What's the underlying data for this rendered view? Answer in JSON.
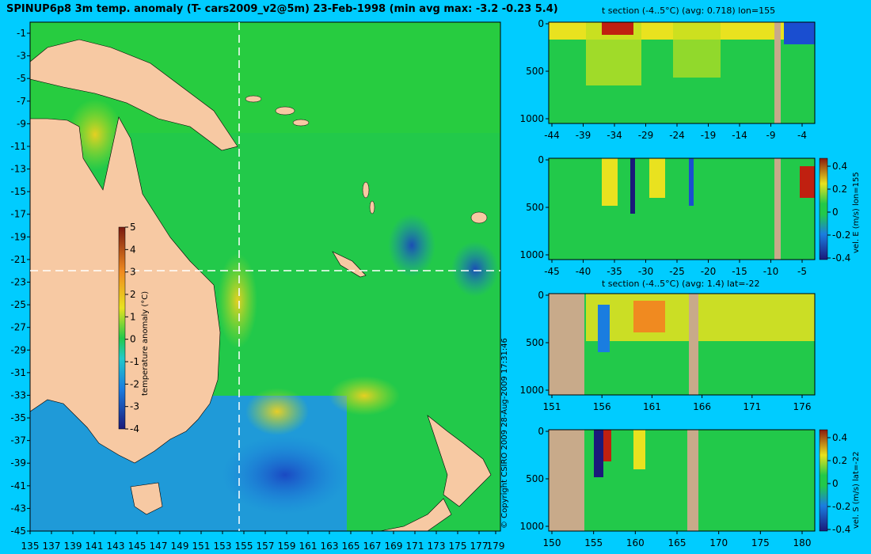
{
  "title": "SPINUP6p8 3m temp. anomaly (T- cars2009_v2@5m) 23-Feb-1998 (min avg max: -3.2 -0.23 5.4)",
  "copyright": "© Copyright CSIRO 2009   28-Aug-2009 17:31:46",
  "colors": {
    "background": "#00ccff",
    "land": "#f7c9a3",
    "section_land": "#c8aa8a",
    "ocean_mid": "#22c94a",
    "ocean_warm": "#e9e21f",
    "ocean_cold": "#1a7de0",
    "guide_line": "#ffffff"
  },
  "map": {
    "x_ticks": [
      "135",
      "137",
      "139",
      "141",
      "143",
      "145",
      "147",
      "149",
      "151",
      "153",
      "155",
      "157",
      "159",
      "161",
      "163",
      "165",
      "167",
      "169",
      "171",
      "173",
      "175",
      "177",
      "179"
    ],
    "y_ticks": [
      "-1",
      "-3",
      "-5",
      "-7",
      "-9",
      "-11",
      "-13",
      "-15",
      "-17",
      "-19",
      "-21",
      "-23",
      "-25",
      "-27",
      "-29",
      "-31",
      "-33",
      "-35",
      "-37",
      "-39",
      "-41",
      "-43",
      "-45"
    ],
    "section_lon": 155,
    "section_lat": -22,
    "colorbar": {
      "label": "temperature anomaly (°C)",
      "ticks": [
        "5",
        "4",
        "3",
        "2",
        "1",
        "0",
        "-1",
        "-2",
        "-3",
        "-4"
      ],
      "min": -4,
      "max": 5
    }
  },
  "panels": [
    {
      "id": "t-section-lon",
      "title": "t section (-4..5°C) (avg: 0.718) lon=155",
      "x_ticks": [
        "-44",
        "-39",
        "-34",
        "-29",
        "-24",
        "-19",
        "-14",
        "-9",
        "-4"
      ],
      "y_ticks": [
        "0",
        "500",
        "1000"
      ]
    },
    {
      "id": "vel-e-lon",
      "title": "",
      "x_ticks": [
        "-45",
        "-40",
        "-35",
        "-30",
        "-25",
        "-20",
        "-15",
        "-10",
        "-5"
      ],
      "y_ticks": [
        "0",
        "500",
        "1000"
      ],
      "colorbar": {
        "label": "vel. E (m/s) lon=155",
        "ticks": [
          "0.4",
          "0.2",
          "0",
          "-0.2",
          "-0.4"
        ]
      }
    },
    {
      "id": "t-section-lat",
      "title": "t section (-4..5°C) (avg: 1.4) lat=-22",
      "x_ticks": [
        "151",
        "156",
        "161",
        "166",
        "171",
        "176"
      ],
      "y_ticks": [
        "0",
        "500",
        "1000"
      ]
    },
    {
      "id": "vel-s-lat",
      "title": "",
      "x_ticks": [
        "150",
        "155",
        "160",
        "165",
        "170",
        "175",
        "180"
      ],
      "y_ticks": [
        "0",
        "500",
        "1000"
      ],
      "colorbar": {
        "label": "vel. S (m/s) lat=-22",
        "ticks": [
          "0.4",
          "0.2",
          "0",
          "-0.2",
          "-0.4"
        ]
      }
    }
  ]
}
